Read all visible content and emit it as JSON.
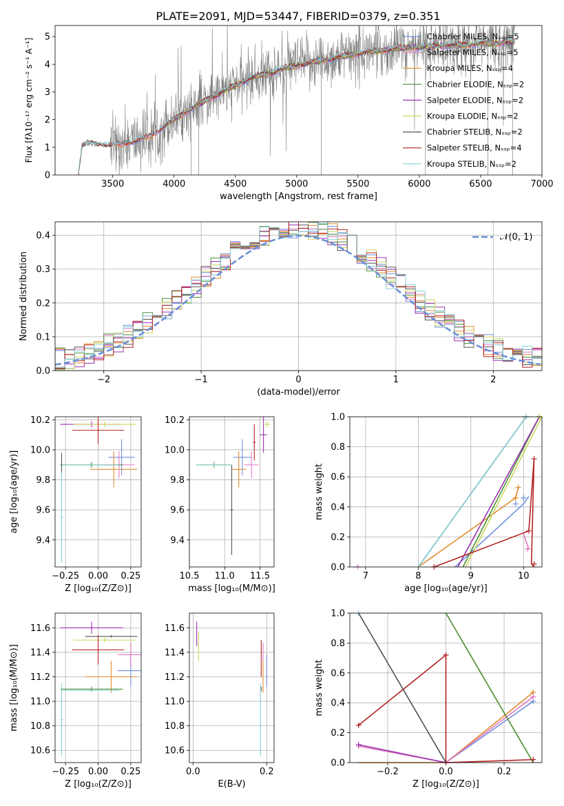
{
  "figure_title": "PLATE=2091, MJD=53447, FIBERID=0379, z=0.351",
  "colors": {
    "chab_miles": "#6f8fdc",
    "salp_miles": "#e377c2",
    "krou_miles": "#e08a2c",
    "chab_elodie": "#4e8f3a",
    "salp_elodie": "#9b2fae",
    "krou_elodie": "#c8d65a",
    "chab_stelib": "#555555",
    "salp_stelib": "#b22222",
    "krou_stelib": "#86d0d6",
    "data": "#7f7f7f",
    "normal": "#6a8fd8"
  },
  "chart_data": [
    {
      "id": "spectrum",
      "type": "line",
      "xlabel": "wavelength [Angstrom, rest frame]",
      "ylabel": "Flux [fλ10⁻¹⁷ erg cm⁻² s⁻¹ A⁻¹]",
      "xlim": [
        3030,
        7000
      ],
      "ylim": [
        0,
        5.4
      ],
      "xticks": [
        "3500",
        "4000",
        "4500",
        "5000",
        "5500",
        "6000",
        "6500",
        "7000"
      ],
      "yticks": [
        "0",
        "1",
        "2",
        "3",
        "4",
        "5"
      ],
      "grid": false,
      "legend_position": "top-right",
      "legend": [
        {
          "text": "Chabrier MILES, Nₛₛₚ=5",
          "color_key": "chab_miles"
        },
        {
          "text": "Salpeter MILES, Nₛₛₚ=5",
          "color_key": "salp_miles"
        },
        {
          "text": "Kroupa MILES, Nₛₛₚ=4",
          "color_key": "krou_miles"
        },
        {
          "text": "Chabrier ELODIE, Nₛₛₚ=2",
          "color_key": "chab_elodie"
        },
        {
          "text": "Salpeter ELODIE, Nₛₛₚ=2",
          "color_key": "salp_elodie"
        },
        {
          "text": "Kroupa ELODIE, Nₛₛₚ=2",
          "color_key": "krou_elodie"
        },
        {
          "text": "Chabrier STELIB, Nₛₛₚ=2",
          "color_key": "chab_stelib"
        },
        {
          "text": "Salpeter STELIB, Nₛₛₚ=4",
          "color_key": "salp_stelib"
        },
        {
          "text": "Kroupa STELIB, Nₛₛₚ=2",
          "color_key": "krou_stelib"
        }
      ],
      "model_continuum": {
        "x": [
          3220,
          3250,
          3300,
          3400,
          3500,
          3600,
          3700,
          3800,
          3900,
          4000,
          4100,
          4200,
          4300,
          4400,
          4500,
          4600,
          4700,
          4800,
          4900,
          5000,
          5100,
          5200,
          5300,
          5400,
          5500,
          5600,
          5700,
          5800,
          5900,
          6000,
          6100,
          6200,
          6300,
          6400,
          6500,
          6600,
          6700,
          6780
        ],
        "y": [
          0.05,
          1.05,
          1.15,
          1.1,
          1.05,
          1.15,
          1.25,
          1.4,
          1.7,
          2.0,
          2.3,
          2.55,
          2.8,
          3.0,
          3.25,
          3.45,
          3.6,
          3.7,
          3.85,
          3.95,
          4.05,
          4.15,
          4.2,
          4.3,
          4.4,
          4.45,
          4.5,
          4.55,
          4.6,
          4.62,
          4.65,
          4.68,
          4.7,
          4.72,
          4.75,
          4.76,
          4.78,
          4.8
        ]
      },
      "data_range": [
        3220,
        6780
      ]
    },
    {
      "id": "residuals",
      "type": "bar",
      "xlabel": "(data-model)/error",
      "ylabel": "Normed distribution",
      "xlim": [
        -2.5,
        2.5
      ],
      "ylim": [
        0,
        0.44
      ],
      "xticks": [
        "−2",
        "−1",
        "0",
        "1",
        "2"
      ],
      "yticks": [
        "0.0",
        "0.1",
        "0.2",
        "0.3",
        "0.4"
      ],
      "grid": true,
      "bin_width": 0.1,
      "legend_position": "top-right",
      "legend": [
        {
          "text": "𝒩(0, 1)",
          "color_key": "normal"
        }
      ]
    },
    {
      "id": "age_vs_Z",
      "type": "scatter",
      "xlabel": "Z [log₁₀(Z/Z⊙)]",
      "ylabel": "age  [log₁₀(age/yr)]",
      "xlim": [
        -0.33,
        0.33
      ],
      "ylim": [
        9.22,
        10.22
      ],
      "xticks": [
        "−0.25",
        "0.00",
        "0.25"
      ],
      "yticks": [
        "9.4",
        "9.6",
        "9.8",
        "10.0",
        "10.2"
      ],
      "grid": true,
      "points": [
        {
          "x": 0.18,
          "xerr": 0.1,
          "y": 9.95,
          "yerr": 0.12,
          "color_key": "chab_miles"
        },
        {
          "x": 0.16,
          "xerr": 0.12,
          "y": 9.9,
          "yerr": 0.09,
          "color_key": "salp_miles"
        },
        {
          "x": 0.12,
          "xerr": 0.18,
          "y": 9.87,
          "yerr": 0.12,
          "color_key": "krou_miles"
        },
        {
          "x": -0.05,
          "xerr": 0.24,
          "y": 9.9,
          "yerr": 0.02,
          "color_key": "chab_elodie"
        },
        {
          "x": -0.05,
          "xerr": 0.24,
          "y": 10.17,
          "yerr": 0.02,
          "color_key": "salp_elodie"
        },
        {
          "x": 0.05,
          "xerr": 0.24,
          "y": 10.17,
          "yerr": 0.02,
          "color_key": "krou_elodie"
        },
        {
          "x": -0.28,
          "xerr": 0.01,
          "y": 9.9,
          "yerr": 0.08,
          "color_key": "chab_stelib"
        },
        {
          "x": 0.0,
          "xerr": 0.2,
          "y": 10.13,
          "yerr": 0.09,
          "color_key": "salp_stelib"
        },
        {
          "x": -0.28,
          "xerr": 0.01,
          "y": 9.55,
          "yerr": 0.3,
          "color_key": "krou_stelib"
        },
        {
          "x": -0.06,
          "xerr": 0.22,
          "y": 9.9,
          "yerr": 0.01,
          "color_key": "krou_stelib"
        }
      ]
    },
    {
      "id": "age_vs_mass",
      "type": "scatter",
      "xlabel": "mass [log₁₀(M/M⊙)]",
      "ylabel": "",
      "xlim": [
        10.5,
        11.7
      ],
      "ylim": [
        9.22,
        10.22
      ],
      "xticks": [
        "10.5",
        "11.0",
        "11.5"
      ],
      "yticks": [
        "9.4",
        "9.6",
        "9.8",
        "10.0",
        "10.2"
      ],
      "grid": true,
      "points": [
        {
          "x": 11.25,
          "xerr": 0.13,
          "y": 9.95,
          "yerr": 0.12,
          "color_key": "chab_miles"
        },
        {
          "x": 11.38,
          "xerr": 0.1,
          "y": 9.9,
          "yerr": 0.09,
          "color_key": "salp_miles"
        },
        {
          "x": 11.2,
          "xerr": 0.1,
          "y": 9.87,
          "yerr": 0.12,
          "color_key": "krou_miles"
        },
        {
          "x": 10.85,
          "xerr": 0.25,
          "y": 9.9,
          "yerr": 0.02,
          "color_key": "chab_elodie"
        },
        {
          "x": 11.55,
          "xerr": 0.05,
          "y": 10.1,
          "yerr": 0.12,
          "color_key": "salp_elodie"
        },
        {
          "x": 11.6,
          "xerr": 0.05,
          "y": 10.17,
          "yerr": 0.02,
          "color_key": "krou_elodie"
        },
        {
          "x": 11.1,
          "xerr": 0.02,
          "y": 9.6,
          "yerr": 0.3,
          "color_key": "chab_stelib"
        },
        {
          "x": 11.42,
          "xerr": 0.02,
          "y": 10.05,
          "yerr": 0.12,
          "color_key": "salp_stelib"
        },
        {
          "x": 10.85,
          "xerr": 0.25,
          "y": 9.9,
          "yerr": 0.01,
          "color_key": "krou_stelib"
        }
      ]
    },
    {
      "id": "weight_vs_age",
      "type": "line",
      "xlabel": "age  [log₁₀(age/yr)]",
      "ylabel": "mass weight",
      "xlim": [
        6.7,
        10.35
      ],
      "ylim": [
        0,
        1.0
      ],
      "xticks": [
        "7",
        "8",
        "9",
        "10"
      ],
      "yticks": [
        "0.0",
        "0.2",
        "0.4",
        "0.6",
        "0.8",
        "1.0"
      ],
      "grid": true,
      "series": [
        {
          "color_key": "chab_miles",
          "x": [
            8.7,
            10.0,
            10.1
          ],
          "y": [
            0.0,
            0.42,
            0.47
          ],
          "markers": [
            [
              9.85,
              0.42
            ],
            [
              10.0,
              0.46
            ]
          ]
        },
        {
          "color_key": "krou_miles",
          "x": [
            8.0,
            9.85,
            9.9
          ],
          "y": [
            0.0,
            0.46,
            0.53
          ],
          "markers": [
            [
              9.85,
              0.46
            ],
            [
              9.9,
              0.53
            ]
          ]
        },
        {
          "color_key": "salp_miles",
          "x": [
            10.05,
            10.1,
            10.0
          ],
          "y": [
            0.12,
            0.12,
            0.22
          ],
          "markers": [
            [
              10.08,
              0.12
            ]
          ]
        },
        {
          "color_key": "chab_elodie",
          "x": [
            8.85,
            10.3
          ],
          "y": [
            0.0,
            1.0
          ],
          "markers": [
            [
              10.3,
              1.0
            ]
          ]
        },
        {
          "color_key": "salp_elodie",
          "x": [
            8.75,
            10.3
          ],
          "y": [
            0.0,
            1.0
          ],
          "markers": [
            [
              10.3,
              1.0
            ]
          ]
        },
        {
          "color_key": "krou_elodie",
          "x": [
            8.9,
            10.35
          ],
          "y": [
            0.0,
            1.0
          ],
          "markers": [
            [
              10.3,
              1.0
            ]
          ]
        },
        {
          "color_key": "chab_stelib",
          "x": [
            8.0,
            10.05
          ],
          "y": [
            0.0,
            1.0
          ],
          "markers": [
            [
              10.05,
              1.0
            ]
          ]
        },
        {
          "color_key": "krou_stelib",
          "x": [
            8.0,
            10.05
          ],
          "y": [
            0.0,
            1.0
          ],
          "markers": [
            [
              10.05,
              1.0
            ]
          ]
        },
        {
          "color_key": "salp_stelib",
          "x": [
            8.3,
            10.1,
            10.2,
            10.15,
            10.2
          ],
          "y": [
            0.0,
            0.24,
            0.72,
            0.02,
            0.0
          ],
          "markers": [
            [
              8.3,
              0.0
            ],
            [
              10.1,
              0.24
            ],
            [
              10.2,
              0.72
            ],
            [
              10.2,
              0.02
            ]
          ]
        }
      ],
      "extra_markers": [
        {
          "x": 6.85,
          "y": 0.0,
          "color_key": "salp_miles"
        }
      ]
    },
    {
      "id": "mass_vs_Z",
      "type": "scatter",
      "xlabel": "Z [log₁₀(Z/Z⊙)]",
      "ylabel": "mass [log₁₀(M/M⊙)]",
      "xlim": [
        -0.33,
        0.33
      ],
      "ylim": [
        10.5,
        11.72
      ],
      "xticks": [
        "−0.25",
        "0.00",
        "0.25"
      ],
      "yticks": [
        "10.6",
        "10.8",
        "11.0",
        "11.2",
        "11.4",
        "11.6"
      ],
      "grid": true,
      "points": [
        {
          "x": 0.25,
          "xerr": 0.1,
          "y": 11.25,
          "yerr": 0.13,
          "color_key": "chab_miles"
        },
        {
          "x": 0.25,
          "xerr": 0.1,
          "y": 11.38,
          "yerr": 0.1,
          "color_key": "salp_miles"
        },
        {
          "x": 0.1,
          "xerr": 0.2,
          "y": 11.2,
          "yerr": 0.13,
          "color_key": "krou_miles"
        },
        {
          "x": -0.05,
          "xerr": 0.24,
          "y": 11.1,
          "yerr": 0.02,
          "color_key": "chab_elodie"
        },
        {
          "x": -0.05,
          "xerr": 0.24,
          "y": 11.6,
          "yerr": 0.05,
          "color_key": "salp_elodie"
        },
        {
          "x": 0.05,
          "xerr": 0.24,
          "y": 11.5,
          "yerr": 0.02,
          "color_key": "krou_elodie"
        },
        {
          "x": 0.1,
          "xerr": 0.2,
          "y": 11.53,
          "yerr": 0.01,
          "color_key": "chab_stelib"
        },
        {
          "x": 0.0,
          "xerr": 0.2,
          "y": 11.42,
          "yerr": 0.12,
          "color_key": "salp_stelib"
        },
        {
          "x": -0.28,
          "xerr": 0.01,
          "y": 10.85,
          "yerr": 0.3,
          "color_key": "krou_stelib"
        },
        {
          "x": -0.06,
          "xerr": 0.22,
          "y": 11.09,
          "yerr": 0.01,
          "color_key": "krou_stelib"
        }
      ]
    },
    {
      "id": "mass_vs_ebv",
      "type": "scatter",
      "xlabel": "E(B-V)",
      "ylabel": "",
      "xlim": [
        -0.01,
        0.22
      ],
      "ylim": [
        10.5,
        11.72
      ],
      "xticks": [
        "0.0",
        "0.2"
      ],
      "yticks": [
        "10.6",
        "10.8",
        "11.0",
        "11.2",
        "11.4",
        "11.6"
      ],
      "grid": true,
      "points": [
        {
          "x": 0.2,
          "xerr": 0.0,
          "y": 11.25,
          "yerr": 0.13,
          "color_key": "chab_miles"
        },
        {
          "x": 0.19,
          "xerr": 0.0,
          "y": 11.38,
          "yerr": 0.1,
          "color_key": "salp_miles"
        },
        {
          "x": 0.19,
          "xerr": 0.0,
          "y": 11.2,
          "yerr": 0.13,
          "color_key": "krou_miles"
        },
        {
          "x": 0.01,
          "xerr": 0.0,
          "y": 11.55,
          "yerr": 0.1,
          "color_key": "salp_elodie"
        },
        {
          "x": 0.015,
          "xerr": 0.0,
          "y": 11.45,
          "yerr": 0.12,
          "color_key": "krou_elodie"
        },
        {
          "x": 0.185,
          "xerr": 0.0,
          "y": 11.1,
          "yerr": 0.02,
          "color_key": "chab_stelib"
        },
        {
          "x": 0.185,
          "xerr": 0.0,
          "y": 11.35,
          "yerr": 0.15,
          "color_key": "salp_stelib"
        },
        {
          "x": 0.183,
          "xerr": 0.0,
          "y": 10.85,
          "yerr": 0.3,
          "color_key": "krou_stelib"
        }
      ]
    },
    {
      "id": "weight_vs_Z",
      "type": "line",
      "xlabel": "Z [log₁₀(Z/Z⊙)]",
      "ylabel": "mass weight",
      "xlim": [
        -0.33,
        0.33
      ],
      "ylim": [
        0,
        1.0
      ],
      "xticks": [
        "−0.2",
        "0.0",
        "0.2"
      ],
      "yticks": [
        "0.0",
        "0.2",
        "0.4",
        "0.6",
        "0.8",
        "1.0"
      ],
      "grid": true,
      "series": [
        {
          "color_key": "chab_miles",
          "x": [
            0.0,
            0.3
          ],
          "y": [
            0.0,
            0.41
          ],
          "markers": [
            [
              0.3,
              0.41
            ]
          ]
        },
        {
          "color_key": "krou_miles",
          "x": [
            -0.3,
            0.0,
            0.3
          ],
          "y": [
            0.0,
            0.0,
            0.47
          ],
          "markers": [
            [
              0.3,
              0.47
            ]
          ]
        },
        {
          "color_key": "salp_miles",
          "x": [
            -0.3,
            0.0,
            0.3
          ],
          "y": [
            0.11,
            0.0,
            0.44
          ],
          "markers": [
            [
              -0.3,
              0.11
            ],
            [
              0.3,
              0.44
            ]
          ]
        },
        {
          "color_key": "krou_elodie",
          "x": [
            0.0,
            0.3
          ],
          "y": [
            1.0,
            0.0
          ],
          "markers": []
        },
        {
          "color_key": "chab_elodie",
          "x": [
            0.0,
            0.3
          ],
          "y": [
            1.0,
            0.0
          ],
          "markers": []
        },
        {
          "color_key": "krou_stelib",
          "x": [
            -0.3,
            0.0
          ],
          "y": [
            1.0,
            0.0
          ],
          "markers": [
            [
              -0.3,
              1.0
            ]
          ]
        },
        {
          "color_key": "chab_stelib",
          "x": [
            -0.3,
            0.0
          ],
          "y": [
            1.0,
            0.0
          ],
          "markers": []
        },
        {
          "color_key": "salp_elodie",
          "x": [
            -0.3,
            0.0
          ],
          "y": [
            0.12,
            0.0
          ],
          "markers": [
            [
              -0.3,
              0.12
            ]
          ]
        },
        {
          "color_key": "salp_stelib",
          "x": [
            -0.3,
            0.0,
            0.0,
            0.3,
            0.0
          ],
          "y": [
            0.25,
            0.72,
            0.0,
            0.02,
            0.0
          ],
          "markers": [
            [
              -0.3,
              0.25
            ],
            [
              0.0,
              0.72
            ],
            [
              0.3,
              0.02
            ]
          ]
        }
      ]
    }
  ]
}
